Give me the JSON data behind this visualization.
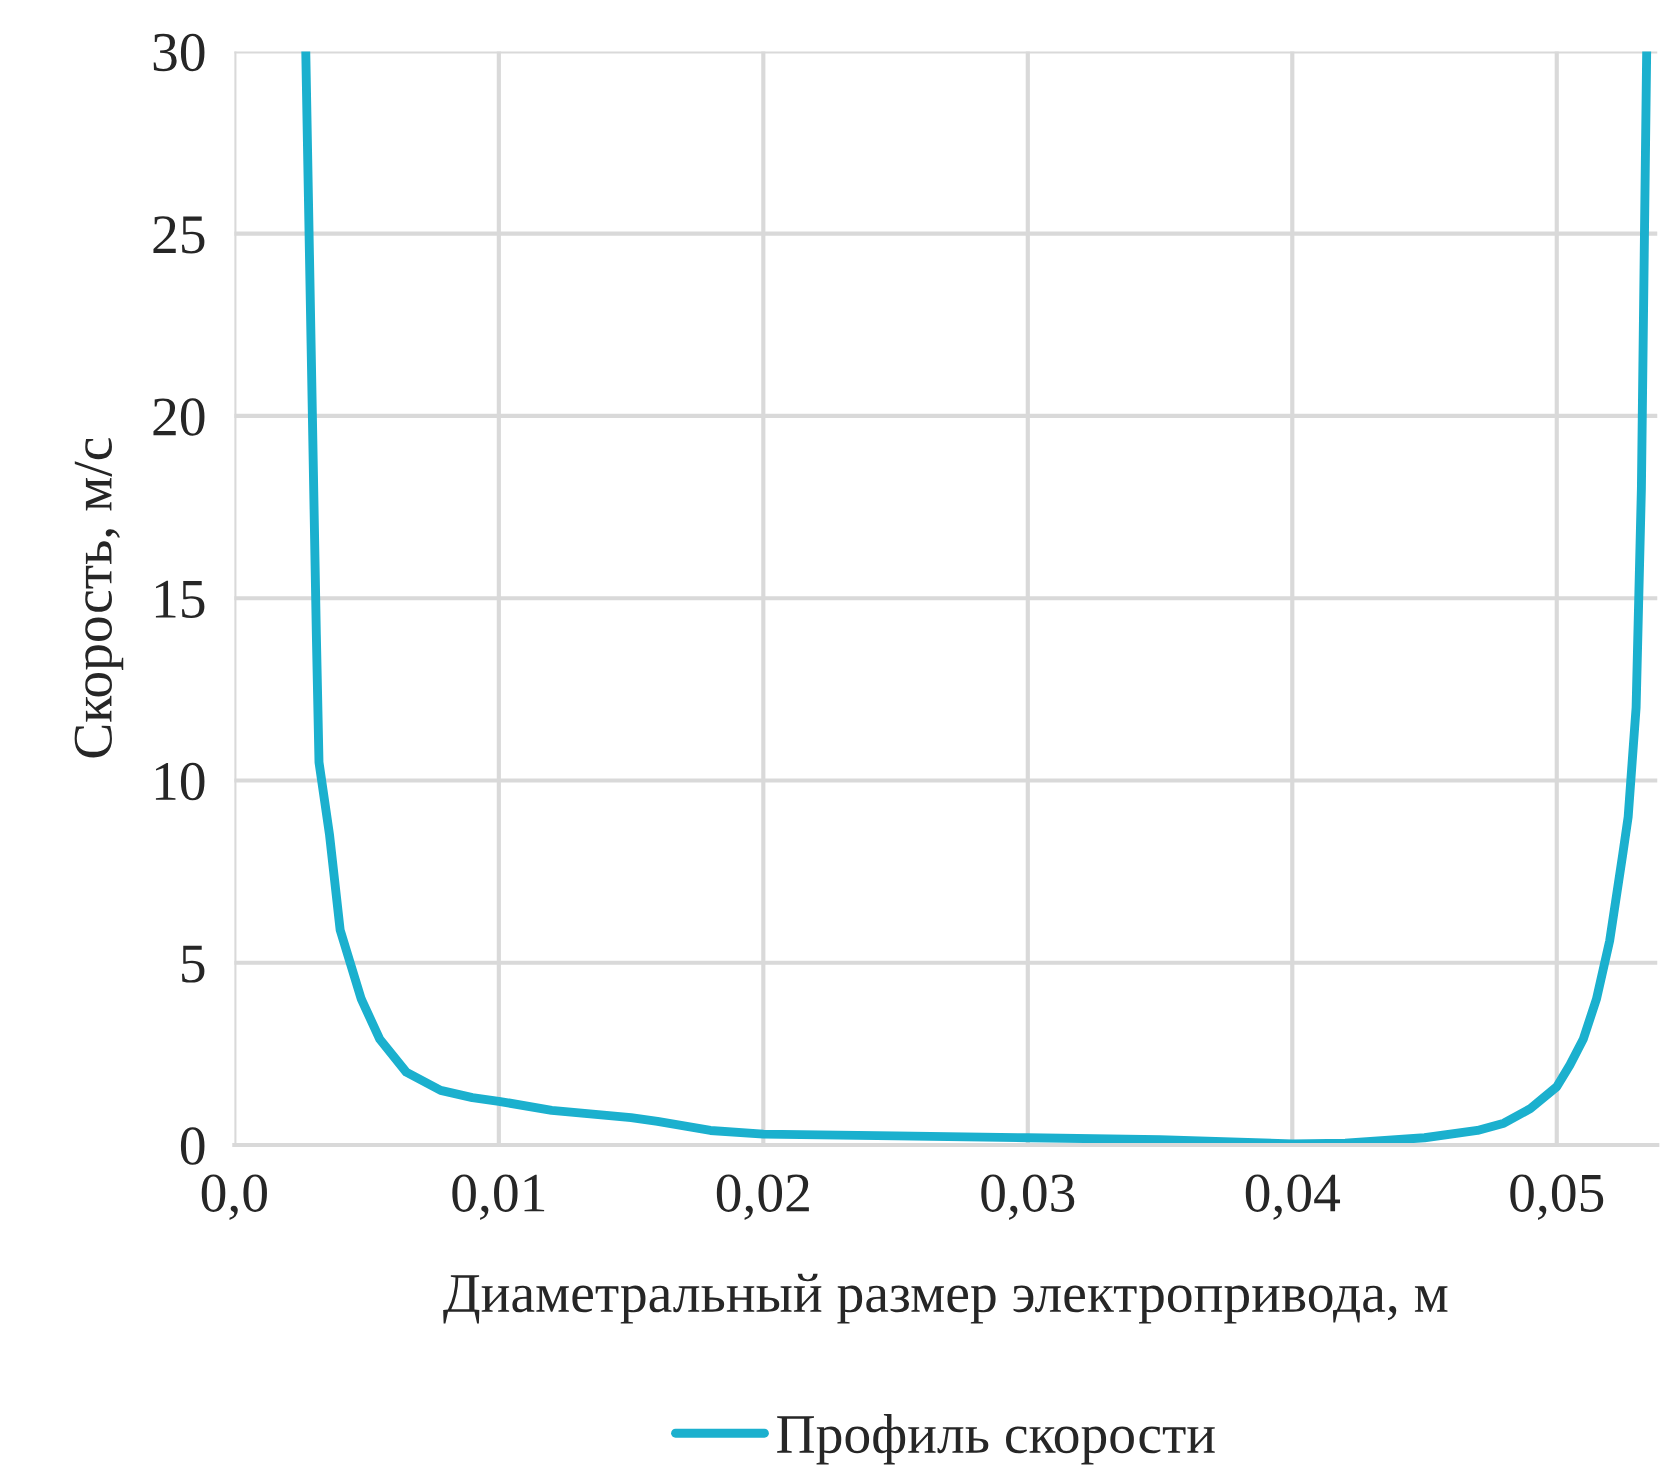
{
  "chart_data": {
    "type": "line",
    "xlabel": "Диаметральный размер электропривода, м",
    "ylabel": "Скорость, м/с",
    "xlim": [
      0,
      0.0538
    ],
    "ylim": [
      0,
      30
    ],
    "xticks": [
      {
        "value": 0,
        "label": "0,0"
      },
      {
        "value": 0.01,
        "label": "0,01"
      },
      {
        "value": 0.02,
        "label": "0,02"
      },
      {
        "value": 0.03,
        "label": "0,03"
      },
      {
        "value": 0.04,
        "label": "0,04"
      },
      {
        "value": 0.05,
        "label": "0,05"
      }
    ],
    "yticks": [
      0,
      5,
      10,
      15,
      20,
      25,
      30
    ],
    "grid": true,
    "legend": "bottom",
    "marker": "none",
    "line_style": "solid",
    "series": [
      {
        "name": "Профиль скорости",
        "color": "#1bb0ce",
        "x": [
          0.0027,
          0.0029,
          0.0031,
          0.0032,
          0.0036,
          0.004,
          0.0048,
          0.0055,
          0.0065,
          0.0078,
          0.009,
          0.01,
          0.012,
          0.015,
          0.016,
          0.018,
          0.02,
          0.025,
          0.03,
          0.035,
          0.038,
          0.04,
          0.042,
          0.045,
          0.047,
          0.048,
          0.049,
          0.05,
          0.0505,
          0.051,
          0.0515,
          0.052,
          0.0525,
          0.0527,
          0.053,
          0.0532,
          0.0534
        ],
        "values": [
          30,
          22,
          14,
          10.5,
          8.5,
          5.9,
          4.0,
          2.9,
          2.0,
          1.5,
          1.3,
          1.2,
          0.95,
          0.75,
          0.65,
          0.4,
          0.3,
          0.25,
          0.2,
          0.15,
          0.08,
          0.03,
          0.05,
          0.2,
          0.4,
          0.6,
          1.0,
          1.6,
          2.2,
          2.9,
          4.0,
          5.6,
          8.0,
          9.0,
          12,
          18,
          30
        ]
      }
    ]
  }
}
